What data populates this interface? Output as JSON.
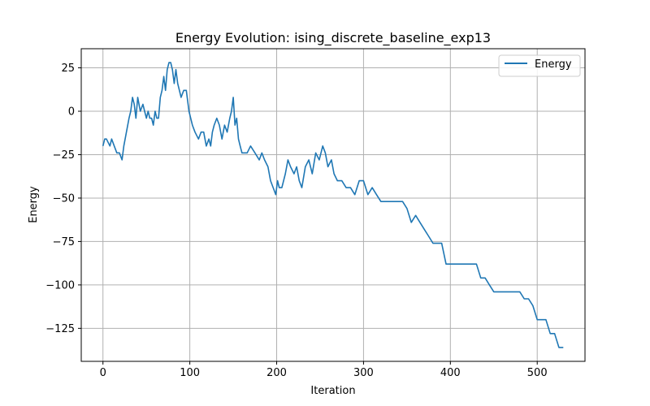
{
  "chart_data": {
    "type": "line",
    "title": "Energy Evolution: ising_discrete_baseline_exp13",
    "xlabel": "Iteration",
    "ylabel": "Energy",
    "xlim": [
      -25,
      555
    ],
    "ylim": [
      -144,
      36
    ],
    "xticks": [
      0,
      100,
      200,
      300,
      400,
      500
    ],
    "yticks": [
      25,
      0,
      -25,
      -50,
      -75,
      -100,
      -125
    ],
    "grid": true,
    "legend_position": "top-right",
    "series": [
      {
        "name": "Energy",
        "color": "#1f77b4",
        "x": [
          0,
          2,
          4,
          8,
          10,
          13,
          16,
          19,
          22,
          24,
          27,
          30,
          32,
          34,
          36,
          38,
          40,
          43,
          46,
          48,
          50,
          52,
          54,
          56,
          58,
          60,
          62,
          64,
          66,
          68,
          70,
          72,
          74,
          76,
          78,
          80,
          82,
          84,
          86,
          88,
          90,
          93,
          96,
          99,
          101,
          103,
          106,
          110,
          113,
          116,
          119,
          122,
          124,
          126,
          128,
          131,
          134,
          137,
          140,
          143,
          146,
          148,
          150,
          152,
          154,
          156,
          158,
          160,
          163,
          166,
          170,
          175,
          180,
          183,
          186,
          190,
          193,
          196,
          199,
          201,
          203,
          206,
          210,
          213,
          216,
          220,
          223,
          226,
          229,
          233,
          237,
          241,
          245,
          249,
          253,
          256,
          259,
          263,
          266,
          270,
          275,
          280,
          285,
          290,
          295,
          300,
          305,
          310,
          315,
          320,
          325,
          330,
          335,
          340,
          345,
          350,
          355,
          360,
          365,
          370,
          375,
          380,
          385,
          390,
          395,
          400,
          405,
          410,
          415,
          420,
          425,
          430,
          435,
          440,
          445,
          450,
          455,
          460,
          465,
          470,
          475,
          480,
          485,
          490,
          495,
          500,
          505,
          510,
          515,
          520,
          525,
          530
        ],
        "y": [
          -20,
          -16,
          -16,
          -20,
          -16,
          -20,
          -24,
          -24,
          -28,
          -20,
          -12,
          -4,
          0,
          8,
          4,
          -4,
          8,
          0,
          4,
          0,
          -4,
          0,
          -4,
          -4,
          -8,
          0,
          -4,
          -4,
          8,
          12,
          20,
          12,
          24,
          28,
          28,
          24,
          16,
          24,
          16,
          12,
          8,
          12,
          12,
          0,
          -4,
          -8,
          -12,
          -16,
          -12,
          -12,
          -20,
          -16,
          -20,
          -12,
          -8,
          -4,
          -8,
          -16,
          -8,
          -12,
          -4,
          0,
          8,
          -8,
          -4,
          -16,
          -20,
          -24,
          -24,
          -24,
          -20,
          -24,
          -28,
          -24,
          -28,
          -32,
          -40,
          -44,
          -48,
          -40,
          -44,
          -44,
          -36,
          -28,
          -32,
          -36,
          -32,
          -40,
          -44,
          -32,
          -28,
          -36,
          -24,
          -28,
          -20,
          -24,
          -32,
          -28,
          -36,
          -40,
          -40,
          -44,
          -44,
          -48,
          -40,
          -40,
          -48,
          -44,
          -48,
          -52,
          -52,
          -52,
          -52,
          -52,
          -52,
          -56,
          -64,
          -60,
          -64,
          -68,
          -72,
          -76,
          -76,
          -76,
          -88,
          -88,
          -88,
          -88,
          -88,
          -88,
          -88,
          -88,
          -96,
          -96,
          -100,
          -104,
          -104,
          -104,
          -104,
          -104,
          -104,
          -104,
          -108,
          -108,
          -112,
          -120,
          -120,
          -120,
          -128,
          -128,
          -136,
          -136
        ]
      }
    ]
  }
}
